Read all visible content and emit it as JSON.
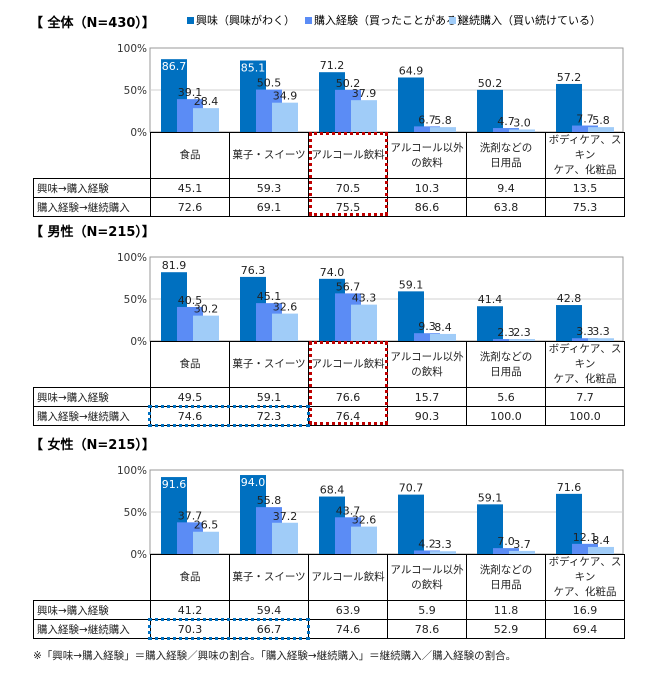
{
  "legend": [
    {
      "label": "興味（興味がわく）",
      "color": "#0070C0"
    },
    {
      "label": "購入経験（買ったことがある）",
      "color": "#5B8CF5"
    },
    {
      "label": "継続購入（買い続けている）",
      "color": "#A0CCF8"
    }
  ],
  "categories": [
    "食品",
    "菓子・スイーツ",
    "アルコール飲料",
    "アルコール以外\nの飲料",
    "洗剤などの\n日用品",
    "ボディケア、スキン\nケア、化粧品"
  ],
  "row_labels": [
    "興味→購入経験",
    "購入経験→継続購入"
  ],
  "y_ticks": [
    "100%",
    "50%",
    "0%"
  ],
  "highlight_colors": {
    "red": "#C00000",
    "blue": "#0070C0"
  },
  "chart_data": [
    {
      "type": "bar",
      "title": "【 全体（N=430）】",
      "ylim": [
        0,
        100
      ],
      "series": [
        {
          "name": "興味（興味がわく）",
          "values": [
            86.7,
            85.1,
            71.2,
            64.9,
            50.2,
            57.2
          ]
        },
        {
          "name": "購入経験（買ったことがある）",
          "values": [
            39.1,
            50.5,
            50.2,
            6.7,
            4.7,
            7.7
          ]
        },
        {
          "name": "継続購入（買い続けている）",
          "values": [
            28.4,
            34.9,
            37.9,
            5.8,
            3.0,
            5.8
          ]
        }
      ],
      "table": [
        [
          "45.1",
          "59.3",
          "70.5",
          "10.3",
          "9.4",
          "13.5"
        ],
        [
          "72.6",
          "69.1",
          "75.5",
          "86.6",
          "63.8",
          "75.3"
        ]
      ],
      "highlights": [
        {
          "color": "red",
          "type": "column",
          "col": 2
        }
      ]
    },
    {
      "type": "bar",
      "title": "【 男性（N=215）】",
      "ylim": [
        0,
        100
      ],
      "series": [
        {
          "name": "興味（興味がわく）",
          "values": [
            81.9,
            76.3,
            74.0,
            59.1,
            41.4,
            42.8
          ]
        },
        {
          "name": "購入経験（買ったことがある）",
          "values": [
            40.5,
            45.1,
            56.7,
            9.3,
            2.3,
            3.3
          ]
        },
        {
          "name": "継続購入（買い続けている）",
          "values": [
            30.2,
            32.6,
            43.3,
            8.4,
            2.3,
            3.3
          ]
        }
      ],
      "table": [
        [
          "49.5",
          "59.1",
          "76.6",
          "15.7",
          "5.6",
          "7.7"
        ],
        [
          "74.6",
          "72.3",
          "76.4",
          "90.3",
          "100.0",
          "100.0"
        ]
      ],
      "highlights": [
        {
          "color": "red",
          "type": "column",
          "col": 2
        },
        {
          "color": "blue",
          "type": "row2",
          "cols": [
            0,
            1
          ]
        }
      ]
    },
    {
      "type": "bar",
      "title": "【 女性（N=215）】",
      "ylim": [
        0,
        100
      ],
      "series": [
        {
          "name": "興味（興味がわく）",
          "values": [
            91.6,
            94.0,
            68.4,
            70.7,
            59.1,
            71.6
          ]
        },
        {
          "name": "購入経験（買ったことがある）",
          "values": [
            37.7,
            55.8,
            43.7,
            4.2,
            7.0,
            12.1
          ]
        },
        {
          "name": "継続購入（買い続けている）",
          "values": [
            26.5,
            37.2,
            32.6,
            3.3,
            3.7,
            8.4
          ]
        }
      ],
      "table": [
        [
          "41.2",
          "59.4",
          "63.9",
          "5.9",
          "11.8",
          "16.9"
        ],
        [
          "70.3",
          "66.7",
          "74.6",
          "78.6",
          "52.9",
          "69.4"
        ]
      ],
      "highlights": [
        {
          "color": "blue",
          "type": "row2",
          "cols": [
            0,
            1
          ]
        }
      ]
    }
  ],
  "note": "※「興味→購入経験」＝購入経験／興味の割合。「購入経験→継続購入」＝継続購入／購入経験の割合。"
}
